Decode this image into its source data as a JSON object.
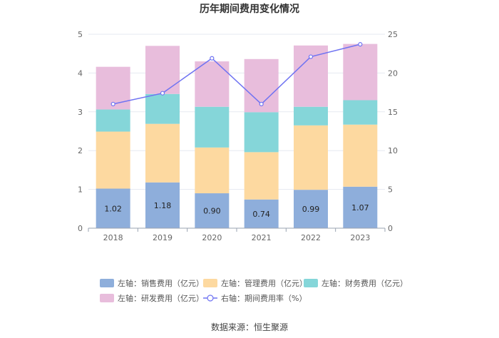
{
  "chart_data": {
    "type": "bar",
    "title": "历年期间费用变化情况",
    "categories": [
      "2018",
      "2019",
      "2020",
      "2021",
      "2022",
      "2023"
    ],
    "left_axis": {
      "ylim": [
        0,
        5
      ],
      "ticks": [
        "0",
        "1",
        "2",
        "3",
        "4",
        "5"
      ]
    },
    "right_axis": {
      "ylim": [
        0,
        25
      ],
      "ticks": [
        "0",
        "5",
        "10",
        "15",
        "20",
        "25"
      ]
    },
    "series": [
      {
        "name": "左轴：销售费用（亿元）",
        "axis": "left",
        "color": "#8eaedb",
        "values": [
          1.02,
          1.18,
          0.9,
          0.74,
          0.99,
          1.07
        ],
        "labels": [
          "1.02",
          "1.18",
          "0.90",
          "0.74",
          "0.99",
          "1.07"
        ]
      },
      {
        "name": "左轴：管理费用（亿元）",
        "axis": "left",
        "color": "#fdd9a0",
        "values": [
          1.47,
          1.51,
          1.18,
          1.22,
          1.66,
          1.6
        ]
      },
      {
        "name": "左轴：财务费用（亿元）",
        "axis": "left",
        "color": "#85d6d9",
        "values": [
          0.57,
          0.77,
          1.05,
          1.03,
          0.48,
          0.63
        ]
      },
      {
        "name": "左轴：研发费用（亿元）",
        "axis": "left",
        "color": "#e8bddc",
        "values": [
          1.1,
          1.24,
          1.17,
          1.37,
          1.58,
          1.45
        ]
      },
      {
        "name": "右轴：期间费用率（%）",
        "axis": "right",
        "type": "line",
        "color": "#6f73f2",
        "values": [
          16.0,
          17.4,
          21.9,
          16.0,
          22.1,
          23.7
        ]
      }
    ]
  },
  "footer": {
    "source": "数据来源：恒生聚源"
  }
}
